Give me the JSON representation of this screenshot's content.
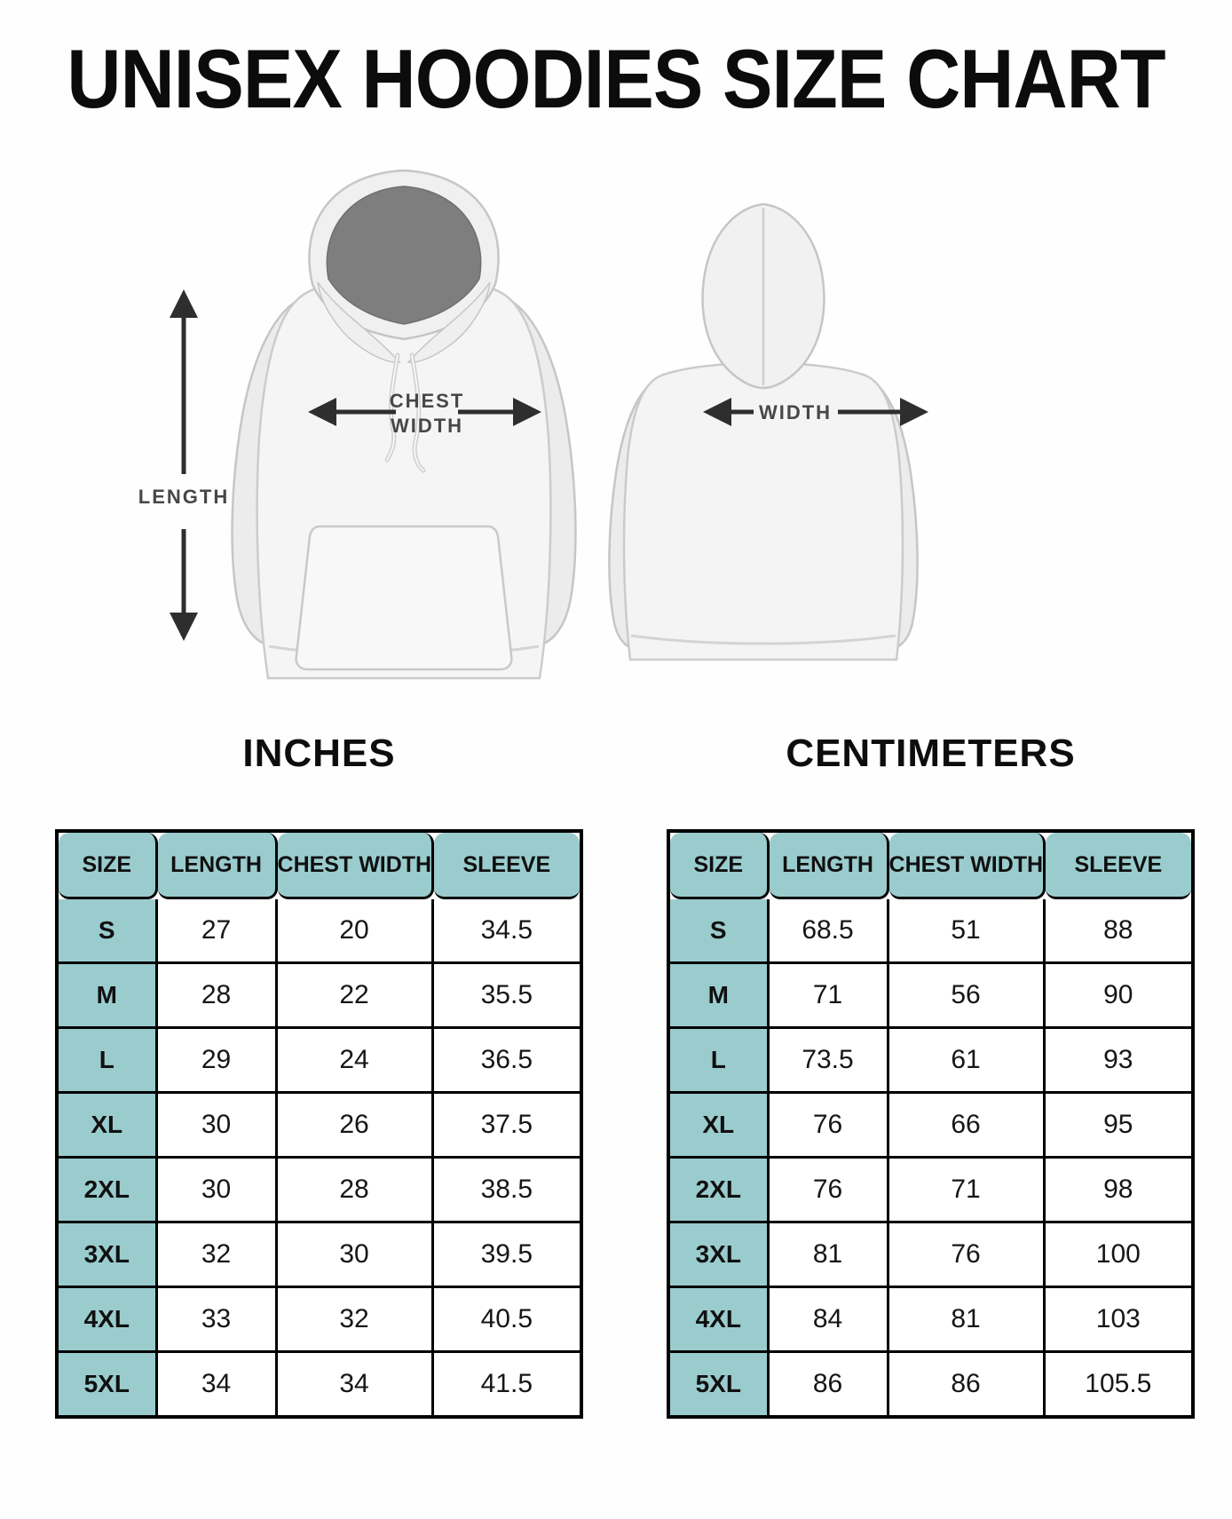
{
  "title": "UNISEX HOODIES SIZE CHART",
  "diagram": {
    "front_labels": {
      "length": "LENGTH",
      "chest_width_line1": "CHEST",
      "chest_width_line2": "WIDTH"
    },
    "back_labels": {
      "width": "WIDTH"
    }
  },
  "colors": {
    "header_fill": "#9accce",
    "table_border": "#000000",
    "arrow": "#2e2e2e",
    "hood_inner": "#7e7e7e"
  },
  "tables": [
    {
      "heading": "INCHES",
      "columns": [
        "SIZE",
        "LENGTH",
        "CHEST WIDTH",
        "SLEEVE"
      ],
      "rows": [
        [
          "S",
          "27",
          "20",
          "34.5"
        ],
        [
          "M",
          "28",
          "22",
          "35.5"
        ],
        [
          "L",
          "29",
          "24",
          "36.5"
        ],
        [
          "XL",
          "30",
          "26",
          "37.5"
        ],
        [
          "2XL",
          "30",
          "28",
          "38.5"
        ],
        [
          "3XL",
          "32",
          "30",
          "39.5"
        ],
        [
          "4XL",
          "33",
          "32",
          "40.5"
        ],
        [
          "5XL",
          "34",
          "34",
          "41.5"
        ]
      ]
    },
    {
      "heading": "CENTIMETERS",
      "columns": [
        "SIZE",
        "LENGTH",
        "CHEST WIDTH",
        "SLEEVE"
      ],
      "rows": [
        [
          "S",
          "68.5",
          "51",
          "88"
        ],
        [
          "M",
          "71",
          "56",
          "90"
        ],
        [
          "L",
          "73.5",
          "61",
          "93"
        ],
        [
          "XL",
          "76",
          "66",
          "95"
        ],
        [
          "2XL",
          "76",
          "71",
          "98"
        ],
        [
          "3XL",
          "81",
          "76",
          "100"
        ],
        [
          "4XL",
          "84",
          "81",
          "103"
        ],
        [
          "5XL",
          "86",
          "86",
          "105.5"
        ]
      ]
    }
  ]
}
